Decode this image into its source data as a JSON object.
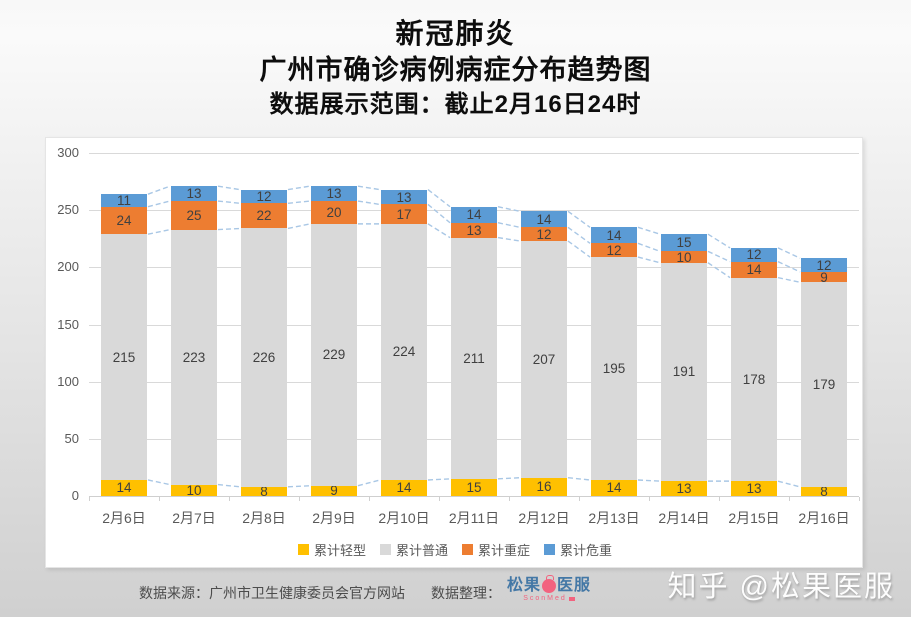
{
  "title": {
    "line1": "新冠肺炎",
    "line2": "广州市确诊病例病症分布趋势图",
    "line3": "数据展示范围：截止2月16日24时"
  },
  "chart_data": {
    "type": "bar",
    "stacked": true,
    "title": "广州市确诊病例病症分布趋势图",
    "categories": [
      "2月6日",
      "2月7日",
      "2月8日",
      "2月9日",
      "2月10日",
      "2月11日",
      "2月12日",
      "2月13日",
      "2月14日",
      "2月15日",
      "2月16日"
    ],
    "series": [
      {
        "name": "累计轻型",
        "color": "#FFC000",
        "values": [
          14,
          10,
          8,
          9,
          14,
          15,
          16,
          14,
          13,
          13,
          8
        ]
      },
      {
        "name": "累计普通",
        "color": "#D9D9D9",
        "values": [
          215,
          223,
          226,
          229,
          224,
          211,
          207,
          195,
          191,
          178,
          179
        ]
      },
      {
        "name": "累计重症",
        "color": "#ED7D31",
        "values": [
          24,
          25,
          22,
          20,
          17,
          13,
          12,
          12,
          10,
          14,
          9
        ]
      },
      {
        "name": "累计危重",
        "color": "#5B9BD5",
        "values": [
          11,
          13,
          12,
          13,
          13,
          14,
          14,
          14,
          15,
          12,
          12
        ]
      }
    ],
    "totals": [
      264,
      271,
      268,
      271,
      268,
      253,
      249,
      235,
      229,
      217,
      208
    ],
    "xlabel": "",
    "ylabel": "",
    "ylim": [
      0,
      300
    ],
    "ytick_interval": 50,
    "grid": true,
    "legend_position": "bottom",
    "series_lines": true,
    "series_line_color": "#A9C7E5",
    "label_color": "#404040"
  },
  "footer": {
    "source_label": "数据来源：广州市卫生健康委员会官方网站",
    "curation_label": "数据整理：",
    "logo": {
      "cn_left": "松果",
      "cn_right": "医服",
      "subtext": "SconMed",
      "icon": "pinecone-icon"
    }
  },
  "watermark": "知乎 @松果医服"
}
